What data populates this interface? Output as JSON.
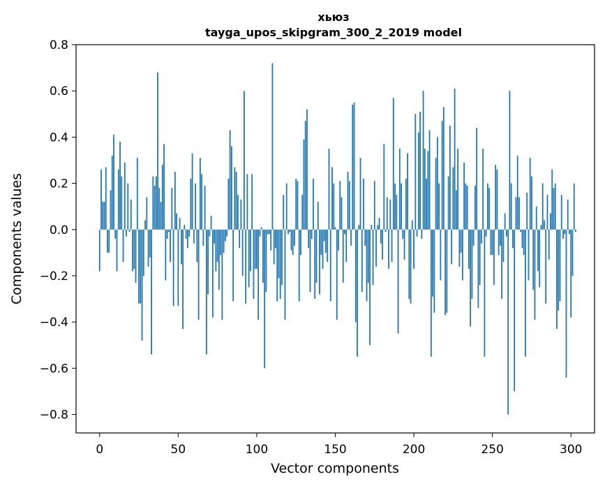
{
  "chart_data": {
    "type": "bar",
    "title": "хьюз",
    "subtitle": "tayga_upos_skipgram_300_2_2019 model",
    "xlabel": "Vector components",
    "ylabel": "Components values",
    "xlim": [
      -15,
      315
    ],
    "ylim": [
      -0.88,
      0.8
    ],
    "x_ticks": [
      0,
      50,
      100,
      150,
      200,
      250,
      300
    ],
    "x_tick_labels": [
      "0",
      "50",
      "100",
      "150",
      "200",
      "250",
      "300"
    ],
    "y_ticks": [
      0.8,
      0.6,
      0.4,
      0.2,
      0.0,
      -0.2,
      -0.4,
      -0.6,
      -0.8
    ],
    "y_tick_labels": [
      "0.8",
      "0.6",
      "0.4",
      "0.2",
      "0.0",
      "−0.2",
      "−0.4",
      "−0.6",
      "−0.8"
    ],
    "bar_color": "#1f77b4",
    "series": [
      {
        "name": "хьюз",
        "values": [
          -0.18,
          0.26,
          0.12,
          0.12,
          0.27,
          -0.1,
          -0.1,
          0.17,
          0.32,
          0.41,
          -0.04,
          -0.18,
          0.26,
          0.38,
          0.23,
          -0.14,
          0.29,
          -0.03,
          0.2,
          -0.01,
          0.13,
          -0.18,
          -0.17,
          -0.23,
          0.31,
          -0.32,
          -0.32,
          -0.48,
          -0.2,
          0.04,
          0.14,
          -0.16,
          -0.12,
          -0.54,
          0.23,
          0.19,
          0.23,
          0.68,
          0.18,
          0.12,
          0.28,
          0.37,
          -0.22,
          -0.04,
          -0.01,
          -0.14,
          0.18,
          -0.33,
          0.25,
          0.07,
          -0.33,
          0.05,
          -0.15,
          -0.43,
          0.02,
          -0.04,
          -0.08,
          -0.03,
          0.22,
          0.33,
          -0.06,
          0.2,
          -0.14,
          -0.39,
          0.31,
          0.24,
          -0.07,
          0.19,
          -0.54,
          -0.28,
          -0.03,
          0.06,
          -0.38,
          -0.06,
          -0.18,
          -0.14,
          -0.26,
          -0.11,
          -0.39,
          -0.1,
          -0.05,
          -0.03,
          0.22,
          0.43,
          0.36,
          -0.31,
          0.27,
          0.25,
          0.15,
          -0.08,
          0.13,
          -0.2,
          0.6,
          -0.32,
          0.24,
          -0.25,
          -0.18,
          0.24,
          -0.3,
          -0.17,
          -0.17,
          -0.39,
          -0.03,
          0.01,
          -0.23,
          -0.6,
          -0.27,
          -0.02,
          -0.02,
          -0.09,
          0.72,
          -0.15,
          -0.08,
          -0.31,
          -0.21,
          -0.3,
          -0.24,
          0.15,
          -0.39,
          0.2,
          -0.02,
          -0.01,
          -0.09,
          -0.11,
          -0.07,
          0.22,
          0.21,
          -0.31,
          -0.11,
          0.15,
          0.39,
          0.47,
          0.52,
          -0.08,
          -0.27,
          -0.04,
          0.22,
          -0.3,
          -0.23,
          0.12,
          -0.28,
          -0.11,
          -0.17,
          -0.05,
          -0.1,
          -0.14,
          0.35,
          -0.31,
          0.27,
          0.2,
          0.01,
          -0.39,
          -0.09,
          0.21,
          0.14,
          -0.23,
          -0.02,
          -0.14,
          0.25,
          0.21,
          -0.07,
          0.54,
          0.55,
          -0.4,
          -0.55,
          0.02,
          0.31,
          -0.27,
          0.22,
          -0.07,
          -0.31,
          -0.23,
          -0.5,
          0.02,
          -0.24,
          0.21,
          -0.16,
          0.02,
          0.05,
          -0.06,
          -0.13,
          0.37,
          -0.01,
          0.14,
          -0.17,
          0.13,
          -0.14,
          0.57,
          0.2,
          0.15,
          -0.45,
          0.35,
          0.2,
          -0.04,
          -0.13,
          0.22,
          0.33,
          -0.3,
          -0.32,
          0.04,
          -0.17,
          0.5,
          -0.03,
          0.42,
          0.51,
          -0.04,
          0.6,
          0.35,
          0.22,
          0.34,
          0.43,
          -0.55,
          -0.29,
          -0.36,
          0.31,
          0.4,
          0.2,
          -0.22,
          0.47,
          0.53,
          -0.37,
          -0.36,
          0.23,
          0.45,
          -0.15,
          0.27,
          0.61,
          0.17,
          0.35,
          -0.16,
          -0.1,
          -0.22,
          0.29,
          0.2,
          0.19,
          -0.17,
          -0.42,
          -0.3,
          -0.07,
          0.19,
          0.44,
          -0.34,
          -0.24,
          -0.06,
          0.35,
          -0.55,
          -0.03,
          0.2,
          0.18,
          -0.11,
          -0.11,
          -0.24,
          0.28,
          0.26,
          -0.11,
          -0.07,
          -0.3,
          -0.14,
          0.07,
          -0.03,
          -0.8,
          0.6,
          0.2,
          -0.08,
          -0.7,
          0.14,
          0.32,
          0.14,
          -0.01,
          -0.08,
          -0.11,
          -0.55,
          0.16,
          -0.22,
          0.31,
          0.23,
          -0.26,
          -0.39,
          0.1,
          -0.18,
          -0.25,
          0.02,
          0.2,
          0.04,
          -0.32,
          0.15,
          -0.13,
          0.07,
          0.26,
          0.18,
          0.2,
          -0.43,
          -0.35,
          -0.31,
          0.15,
          -0.04,
          -0.02,
          -0.64,
          0.13,
          -0.02,
          -0.38,
          -0.2,
          0.2,
          -0.01
        ]
      }
    ]
  }
}
